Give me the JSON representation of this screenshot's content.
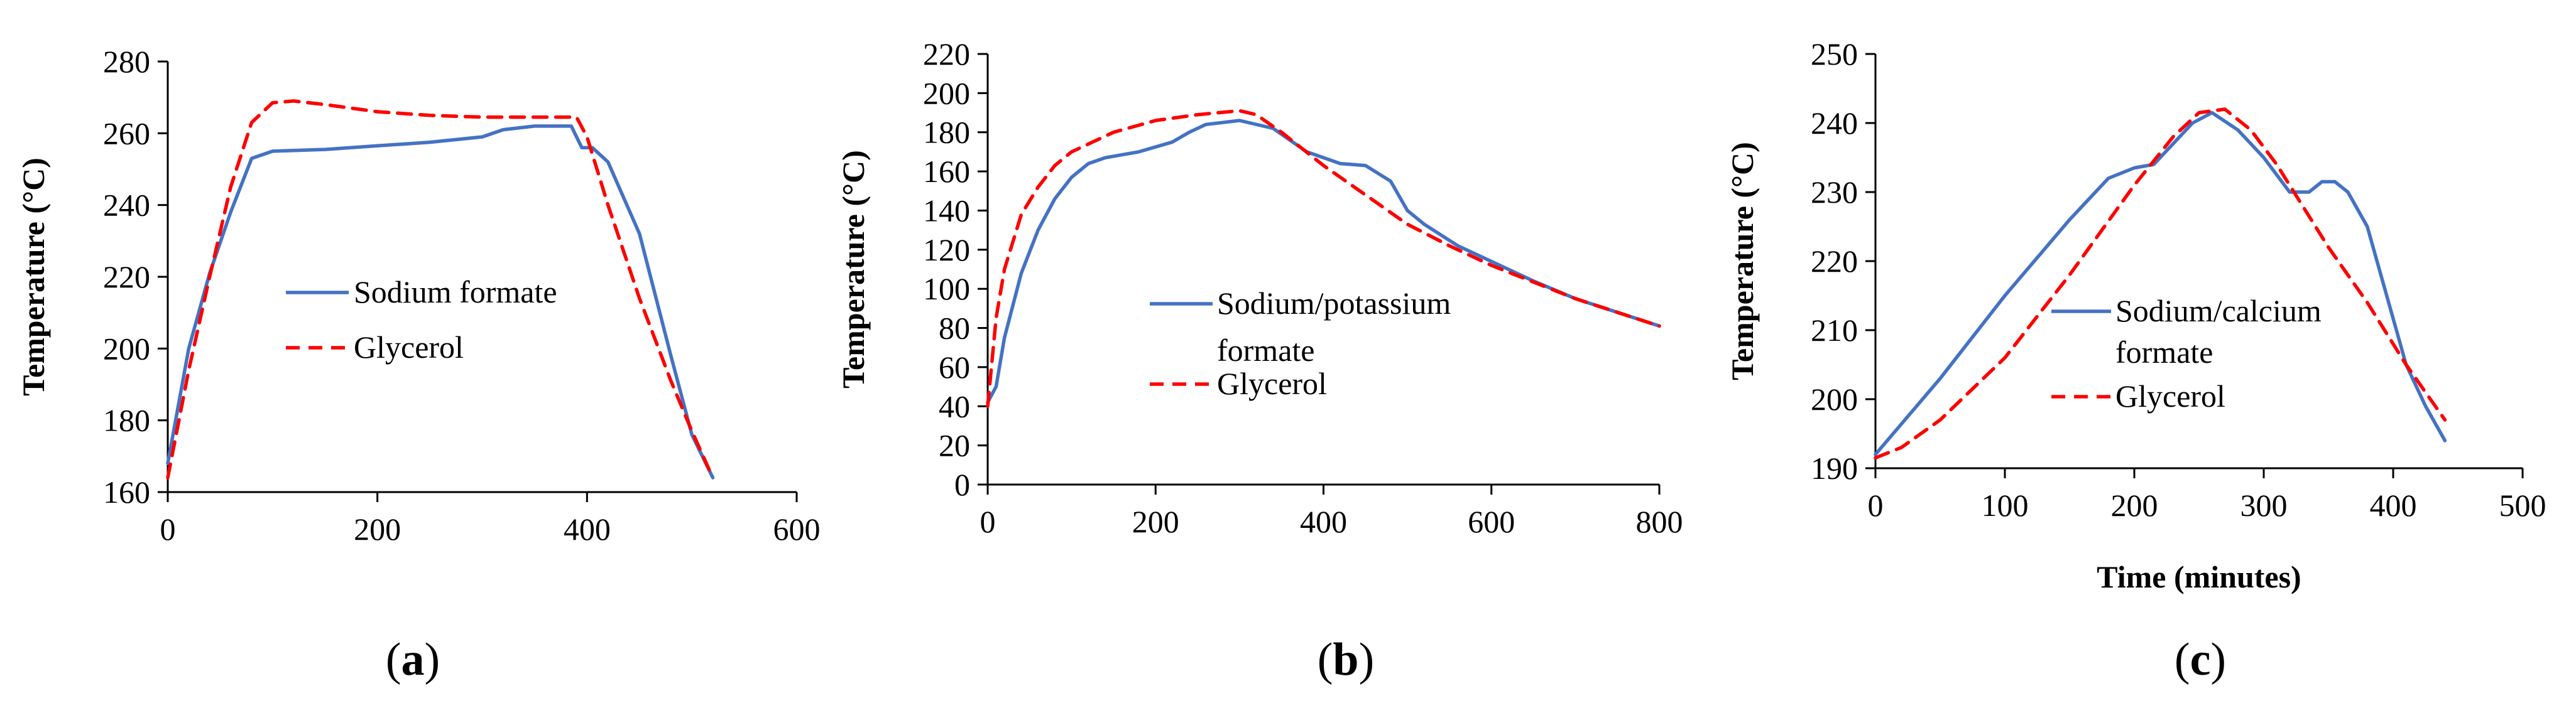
{
  "colors": {
    "series_a": "#4472C4",
    "series_b": "#FF0000",
    "axis": "#000000"
  },
  "chart_data": [
    {
      "type": "line",
      "caption": "a",
      "xlabel": "",
      "ylabel": "Temperature (°C)",
      "xlim": [
        0,
        600
      ],
      "ylim": [
        160,
        280
      ],
      "xticks": [
        "0",
        "200",
        "400",
        "600"
      ],
      "yticks": [
        "160",
        "180",
        "200",
        "220",
        "240",
        "260",
        "280"
      ],
      "legend": [
        "Sodium formate",
        "Glycerol"
      ],
      "series": [
        {
          "name": "Sodium formate",
          "style": "solid",
          "x": [
            0,
            20,
            40,
            60,
            80,
            100,
            150,
            200,
            250,
            300,
            320,
            350,
            385,
            395,
            405,
            420,
            450,
            480,
            500,
            520
          ],
          "y": [
            168,
            200,
            221,
            238,
            253,
            255,
            255.5,
            256.5,
            257.5,
            259,
            261,
            262,
            262,
            256,
            256,
            252,
            232,
            198,
            176,
            164
          ]
        },
        {
          "name": "Glycerol",
          "style": "dashed",
          "x": [
            0,
            20,
            40,
            60,
            80,
            100,
            120,
            150,
            200,
            250,
            300,
            350,
            390,
            400,
            420,
            450,
            480,
            500,
            520
          ],
          "y": [
            164,
            194,
            220,
            245,
            263,
            268.5,
            269,
            268,
            266,
            265,
            264.5,
            264.5,
            264.5,
            259,
            240,
            214,
            191,
            177,
            164
          ]
        }
      ]
    },
    {
      "type": "line",
      "caption": "b",
      "xlabel": "",
      "ylabel": "Temperature (°C)",
      "xlim": [
        0,
        800
      ],
      "ylim": [
        0,
        220
      ],
      "xticks": [
        "0",
        "200",
        "400",
        "600",
        "800"
      ],
      "yticks": [
        "0",
        "20",
        "40",
        "60",
        "80",
        "100",
        "120",
        "140",
        "160",
        "180",
        "200",
        "220"
      ],
      "legend": [
        "Sodium/potassium",
        "formate",
        "Glycerol"
      ],
      "series": [
        {
          "name": "Sodium/potassium formate",
          "style": "solid",
          "x": [
            0,
            10,
            20,
            40,
            60,
            80,
            100,
            120,
            140,
            180,
            220,
            240,
            260,
            300,
            340,
            380,
            420,
            450,
            480,
            500,
            520,
            560,
            600,
            650,
            700,
            750,
            800
          ],
          "y": [
            42,
            50,
            75,
            108,
            130,
            146,
            157,
            164,
            167,
            170,
            175,
            180,
            184,
            186,
            182,
            170,
            164,
            163,
            155,
            140,
            133,
            122,
            114,
            104,
            95,
            88,
            81
          ]
        },
        {
          "name": "Glycerol",
          "style": "dashed",
          "x": [
            0,
            10,
            20,
            40,
            60,
            80,
            100,
            150,
            200,
            250,
            300,
            320,
            350,
            400,
            450,
            500,
            550,
            600,
            700,
            800
          ],
          "y": [
            40,
            85,
            110,
            138,
            152,
            163,
            170,
            180,
            186,
            189,
            191,
            189,
            180,
            163,
            148,
            133,
            122,
            112,
            95,
            81
          ]
        }
      ]
    },
    {
      "type": "line",
      "caption": "c",
      "xlabel": "Time (minutes)",
      "ylabel": "Temperature (°C)",
      "xlim": [
        0,
        500
      ],
      "ylim": [
        190,
        250
      ],
      "xticks": [
        "0",
        "100",
        "200",
        "300",
        "400",
        "500"
      ],
      "yticks": [
        "190",
        "200",
        "210",
        "220",
        "230",
        "240",
        "250"
      ],
      "legend": [
        "Sodium/calcium",
        "formate",
        "Glycerol"
      ],
      "series": [
        {
          "name": "Sodium/calcium formate",
          "style": "solid",
          "x": [
            0,
            50,
            100,
            150,
            180,
            200,
            215,
            230,
            245,
            260,
            280,
            300,
            320,
            335,
            345,
            355,
            365,
            380,
            395,
            410,
            425,
            440
          ],
          "y": [
            192,
            203,
            215,
            226,
            232,
            233.5,
            234,
            237,
            240,
            241.5,
            239,
            235,
            230,
            230,
            231.5,
            231.5,
            230,
            225,
            215,
            205,
            199,
            194
          ]
        },
        {
          "name": "Glycerol",
          "style": "dashed",
          "x": [
            0,
            20,
            50,
            100,
            150,
            200,
            230,
            250,
            270,
            290,
            310,
            330,
            350,
            380,
            410,
            440
          ],
          "y": [
            191.5,
            193,
            197,
            206,
            218,
            231,
            238,
            241.5,
            242,
            239,
            234,
            228,
            222,
            214,
            205,
            197
          ]
        }
      ]
    }
  ]
}
